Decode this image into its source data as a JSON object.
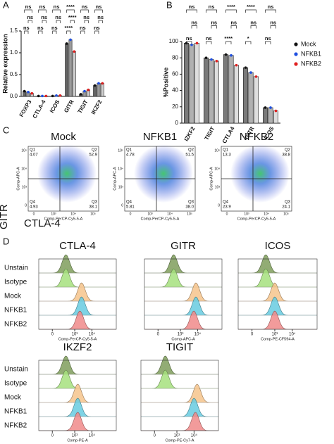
{
  "panel_labels": [
    "A",
    "B",
    "C",
    "D"
  ],
  "chart_data": [
    {
      "type": "bar",
      "ylabel": "Relative expression",
      "categories": [
        "FOXP3",
        "CTLA-4",
        "ICOS",
        "GITR",
        "TIGIT",
        "IKZF2"
      ],
      "series": [
        {
          "color": "#111111",
          "fill": "#666666",
          "values": [
            0.12,
            0.01,
            0.01,
            1.21,
            0.05,
            0.25
          ]
        },
        {
          "color": "#1f4fe0",
          "fill": "#9a9a9a",
          "values": [
            0.1,
            0.01,
            0.02,
            1.3,
            0.12,
            0.3
          ]
        },
        {
          "color": "#e02020",
          "fill": "#cfcfcf",
          "values": [
            0.07,
            0.01,
            0.02,
            1.03,
            0.15,
            0.3
          ]
        }
      ],
      "ylim": [
        0,
        1.5
      ],
      "yticks": [
        {
          "value": 0,
          "label": "0.0"
        },
        {
          "value": 0.5,
          "label": "0.5"
        },
        {
          "value": 1,
          "label": "1.0"
        },
        {
          "value": 1.5,
          "label": "1.5"
        }
      ],
      "significance": [
        [
          "ns",
          "ns",
          "ns"
        ],
        [
          "ns",
          "ns",
          "ns"
        ],
        [
          "ns",
          "ns",
          "ns"
        ],
        [
          "****",
          "****",
          "****"
        ],
        [
          "ns",
          "ns",
          "ns"
        ],
        [
          "ns",
          "ns",
          "ns"
        ]
      ]
    },
    {
      "type": "bar",
      "ylabel": "%Positive",
      "categories": [
        "IZKF2",
        "TIGIT",
        "CTLA4",
        "GITR",
        "ICOS"
      ],
      "series": [
        {
          "name": "Mock",
          "color": "#111111",
          "fill": "#7a7a7a",
          "values": [
            98,
            80,
            84,
            68,
            19
          ]
        },
        {
          "name": "NFKB1",
          "color": "#1f4fe0",
          "fill": "#b0b0b0",
          "values": [
            96,
            78,
            83,
            62,
            19
          ]
        },
        {
          "name": "NFKB2",
          "color": "#e02020",
          "fill": "#dedede",
          "values": [
            98,
            76,
            71,
            57,
            15
          ]
        }
      ],
      "ylim": [
        0,
        100
      ],
      "yticks": [
        0,
        20,
        40,
        60,
        80,
        100
      ],
      "significance": [
        [
          "ns",
          "ns",
          "ns"
        ],
        [
          "ns",
          "ns",
          "ns"
        ],
        [
          "****",
          "ns",
          "****"
        ],
        [
          "****",
          "ns",
          "*"
        ],
        [
          "ns",
          "ns",
          "ns"
        ]
      ],
      "legend": "right"
    }
  ],
  "flow_plots": {
    "x_label": "Comp-PerCP-Cy5-5-A",
    "y_label": "Comp-APC-A",
    "row_label": "GITR",
    "col_label": "CTLA-4",
    "yticks": [
      "10⁵",
      "10⁴",
      "10³",
      "0"
    ],
    "xticks": [
      "0",
      "10³",
      "10⁴",
      "10⁵"
    ],
    "plots": [
      {
        "title": "Mock",
        "quadrants": [
          {
            "name": "Q1",
            "value": "4.07"
          },
          {
            "name": "Q2",
            "value": "52.9"
          },
          {
            "name": "Q4",
            "value": "4.93"
          },
          {
            "name": "Q3",
            "value": "38.1"
          }
        ]
      },
      {
        "title": "NFKB1",
        "quadrants": [
          {
            "name": "Q1",
            "value": "4.78"
          },
          {
            "name": "Q2",
            "value": "51.5"
          },
          {
            "name": "Q4",
            "value": "5.81"
          },
          {
            "name": "Q3",
            "value": "38.0"
          }
        ]
      },
      {
        "title": "NFKB2",
        "quadrants": [
          {
            "name": "Q1",
            "value": "13.3"
          },
          {
            "name": "Q2",
            "value": "38.8"
          },
          {
            "name": "Q4",
            "value": "23.9"
          },
          {
            "name": "Q3",
            "value": "24.1"
          }
        ]
      }
    ]
  },
  "histograms": {
    "rows": [
      "Unstain",
      "Isotype",
      "Mock",
      "NFKB1",
      "NFKB2"
    ],
    "colors": [
      "#7f9e5c",
      "#a6e07e",
      "#f6c48c",
      "#67cbe0",
      "#f08a8a"
    ],
    "xlim": [
      -300,
      262144
    ],
    "xticks": [
      {
        "value": 0,
        "label": "0"
      },
      {
        "value": 1000,
        "label": "10³"
      },
      {
        "value": 10000,
        "label": "10⁴"
      }
    ],
    "panels": [
      {
        "title": "CTLA-4",
        "x_label": "Comp-PerCP-Cy5-5-A",
        "peaks": [
          300,
          300,
          2500,
          2500,
          2000
        ]
      },
      {
        "title": "GITR",
        "x_label": "Comp-APC-A",
        "peaks": [
          400,
          400,
          8000,
          8000,
          6000
        ]
      },
      {
        "title": "ICOS",
        "x_label": "Comp-PE-CF594-A",
        "peaks": [
          300,
          300,
          1000,
          1000,
          1000
        ]
      },
      {
        "title": "IKZF2",
        "x_label": "Comp-PE-A",
        "peaks": [
          300,
          300,
          1500,
          1500,
          1500
        ]
      },
      {
        "title": "TIGIT",
        "x_label": "Comp-PE-Cy7-A",
        "peaks": [
          200,
          200,
          15000,
          10000,
          12000
        ]
      }
    ]
  }
}
